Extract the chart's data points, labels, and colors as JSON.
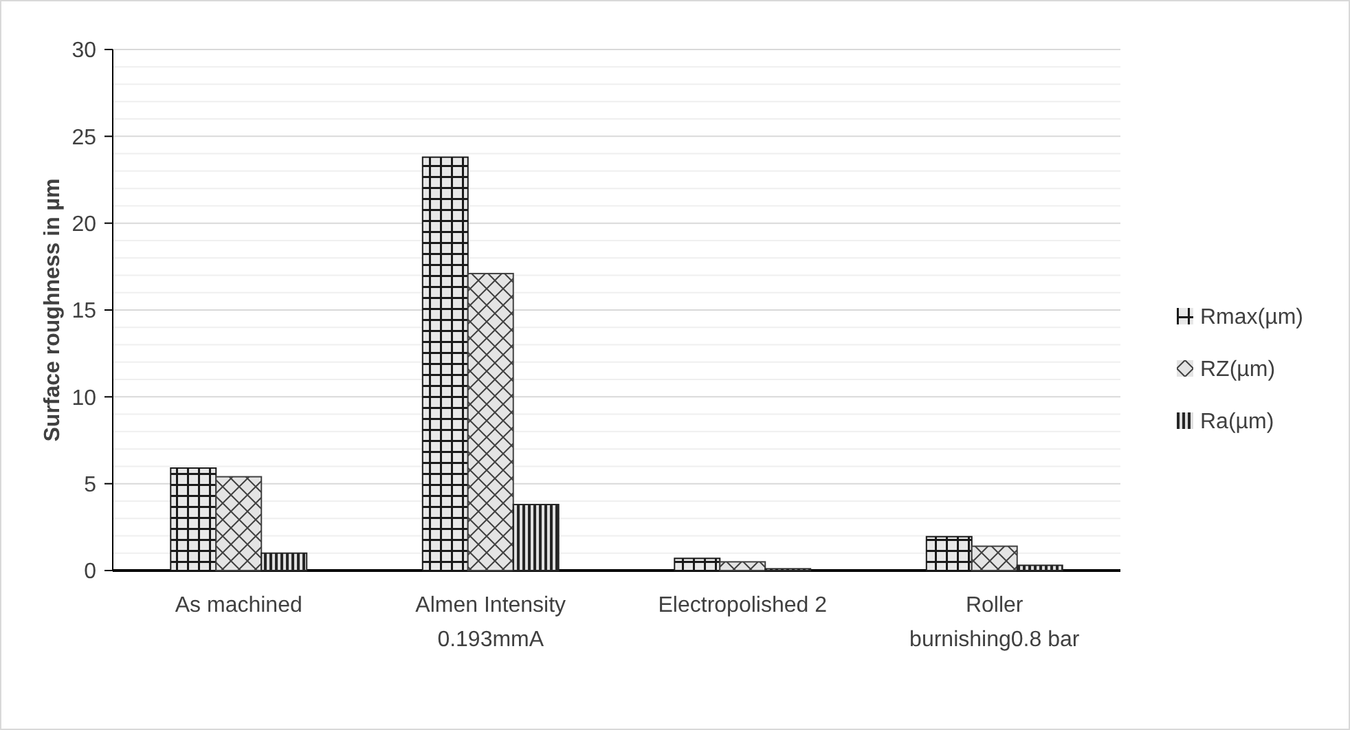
{
  "chart_data": {
    "type": "bar",
    "ylabel": "Surface roughness in µm",
    "categories": [
      "As machined",
      "Almen Intensity 0.193mmA",
      "Electropolished 2",
      "Roller burnishing0.8 bar"
    ],
    "series": [
      {
        "name": "Rmax(µm)",
        "color": "#1a1a1a",
        "values": [
          5.9,
          23.8,
          0.7,
          1.95
        ]
      },
      {
        "name": "RZ(µm)",
        "color": "#404040",
        "values": [
          5.4,
          17.1,
          0.5,
          1.4
        ]
      },
      {
        "name": "Ra(µm)",
        "color": "#262626",
        "values": [
          1.0,
          3.8,
          0.1,
          0.3
        ]
      }
    ],
    "ylim": [
      0,
      30
    ],
    "yticks": [
      0,
      {
        "value": 1,
        "label": null
      },
      {
        "value": 2,
        "label": null
      },
      {
        "value": 3,
        "label": null
      },
      {
        "value": 4,
        "label": null
      },
      5,
      {
        "value": 6,
        "label": null
      },
      {
        "value": 7,
        "label": null
      },
      {
        "value": 8,
        "label": null
      },
      {
        "value": 9,
        "label": null
      },
      10,
      {
        "value": 11,
        "label": null
      },
      {
        "value": 12,
        "label": null
      },
      {
        "value": 13,
        "label": null
      },
      {
        "value": 14,
        "label": null
      },
      15,
      {
        "value": 16,
        "label": null
      },
      {
        "value": 17,
        "label": null
      },
      {
        "value": 18,
        "label": null
      },
      {
        "value": 19,
        "label": null
      },
      20,
      {
        "value": 21,
        "label": null
      },
      {
        "value": 22,
        "label": null
      },
      {
        "value": 23,
        "label": null
      },
      {
        "value": 24,
        "label": null
      },
      25,
      {
        "value": 26,
        "label": null
      },
      {
        "value": 27,
        "label": null
      },
      {
        "value": 28,
        "label": null
      },
      {
        "value": 29,
        "label": null
      },
      30
    ],
    "grid": true,
    "legend": "right"
  }
}
